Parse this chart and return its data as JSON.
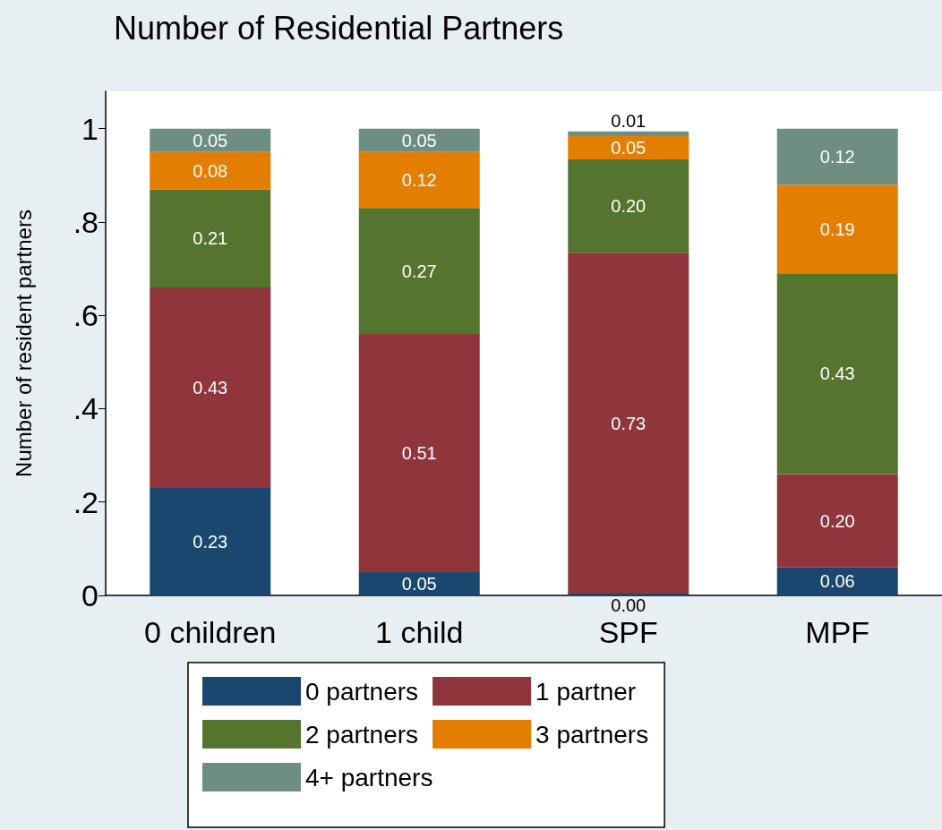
{
  "chart_data": {
    "type": "bar",
    "title": "Number of Residential Partners",
    "ylabel": "Number of resident partners",
    "categories": [
      "0 children",
      "1 child",
      "SPF",
      "MPF"
    ],
    "stacked": true,
    "ylim": [
      0,
      1.08
    ],
    "yticks": [
      0,
      {
        "value": 0.2,
        "label": ".2"
      },
      {
        "value": 0.4,
        "label": ".4"
      },
      {
        "value": 0.6,
        "label": ".6"
      },
      {
        "value": 0.8,
        "label": ".8"
      },
      1
    ],
    "grid": false,
    "legend": "bottom",
    "series": [
      {
        "name": "0 partners",
        "color": "#1a476f",
        "values": [
          0.23,
          0.05,
          0.004,
          0.06
        ],
        "value_labels": [
          "0.23",
          "0.05",
          "0.00",
          "0.06"
        ]
      },
      {
        "name": "1 partner",
        "color": "#90353b",
        "values": [
          0.43,
          0.51,
          0.73,
          0.2
        ],
        "value_labels": [
          "0.43",
          "0.51",
          "0.73",
          "0.20"
        ]
      },
      {
        "name": "2 partners",
        "color": "#55752f",
        "values": [
          0.21,
          0.27,
          0.2,
          0.43
        ],
        "value_labels": [
          "0.21",
          "0.27",
          "0.20",
          "0.43"
        ]
      },
      {
        "name": "3 partners",
        "color": "#e37e00",
        "values": [
          0.08,
          0.12,
          0.05,
          0.19
        ],
        "value_labels": [
          "0.08",
          "0.12",
          "0.05",
          "0.19"
        ]
      },
      {
        "name": "4+ partners",
        "color": "#6e8e84",
        "values": [
          0.05,
          0.05,
          0.01,
          0.12
        ],
        "value_labels": [
          "0.05",
          "0.05",
          "0.01",
          "0.12"
        ]
      }
    ]
  }
}
